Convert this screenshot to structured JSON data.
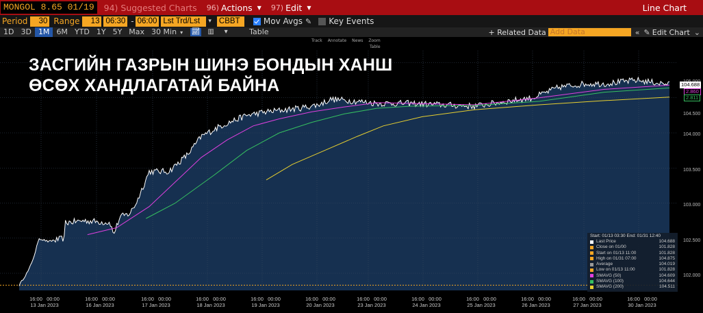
{
  "toolbar": {
    "security": "MONGOL 8.65 01/19",
    "suggested": "94) Suggested Charts",
    "actions_num": "96)",
    "actions_label": "Actions",
    "edit_num": "97)",
    "edit_label": "Edit",
    "chart_type": "Line Chart"
  },
  "params": {
    "period_label": "Period",
    "period_value": "30",
    "range_label": "Range",
    "range_value": "13",
    "time_from": "06:30",
    "time_to": "06:00",
    "series": "Lst Trd/Lst",
    "source": "CBBT",
    "mov_avgs": "Mov Avgs",
    "key_events": "Key Events"
  },
  "ranges": {
    "items": [
      "1D",
      "3D",
      "1M",
      "6M",
      "YTD",
      "1Y",
      "5Y",
      "Max"
    ],
    "active": "1M",
    "interval": "30 Min",
    "table": "Table",
    "related": "+ Related Data",
    "add_data_placeholder": "Add Data",
    "edit_chart": "Edit Chart"
  },
  "headline": {
    "line1": "ЗАСГИЙН ГАЗРЫН ШИНЭ БОНДЫН ХАНШ",
    "line2": "ӨСӨХ ХАНДЛАГАТАЙ БАЙНА"
  },
  "mini_tools": [
    "Track",
    "Annotate",
    "News",
    "Zoom"
  ],
  "mini_tool2": "Table",
  "y_axis": {
    "ticks": [
      "105.000",
      "104.500",
      "104.000",
      "103.500",
      "103.000",
      "102.500",
      "102.000"
    ],
    "tags": [
      {
        "text": "104.688",
        "color": "#ffffff"
      },
      {
        "text": "2.860",
        "color": "#e040e0"
      },
      {
        "text": "2.811",
        "color": "#36c060"
      }
    ]
  },
  "x_axis": [
    {
      "t": "16:00   00:00",
      "d": "13 Jan 2023"
    },
    {
      "t": "16:00   00:00",
      "d": "16 Jan 2023"
    },
    {
      "t": "16:00   00:00",
      "d": "17 Jan 2023"
    },
    {
      "t": "16:00   00:00",
      "d": "18 Jan 2023"
    },
    {
      "t": "16:00   00:00",
      "d": "19 Jan 2023"
    },
    {
      "t": "16:00   00:00",
      "d": "20 Jan 2023"
    },
    {
      "t": "16:00   00:00",
      "d": "23 Jan 2023"
    },
    {
      "t": "16:00   00:00",
      "d": "24 Jan 2023"
    },
    {
      "t": "16:00   00:00",
      "d": "25 Jan 2023"
    },
    {
      "t": "16:00   00:00",
      "d": "26 Jan 2023"
    },
    {
      "t": "16:00   00:00",
      "d": "27 Jan 2023"
    },
    {
      "t": "16:00   00:00",
      "d": "30 Jan 2023"
    }
  ],
  "legend": {
    "header": "Start: 01/13 03:30 End: 01/31 12:40",
    "rows": [
      {
        "name": "Last Price",
        "value": "104.688",
        "color": "#ffffff"
      },
      {
        "name": "Close on 01/00",
        "value": "101.828",
        "color": "#f5a623"
      },
      {
        "name": "Start on 01/13 11:00",
        "value": "101.828",
        "color": "#f5a623"
      },
      {
        "name": "High on 01/31 07:00",
        "value": "104.875",
        "color": "#f5a623"
      },
      {
        "name": "Average",
        "value": "104.019",
        "color": "#999999"
      },
      {
        "name": "Low on 01/13 11:00",
        "value": "101.828",
        "color": "#f5a623"
      },
      {
        "name": "SMAVG (50)",
        "value": "104.609",
        "color": "#e040e0"
      },
      {
        "name": "SMAVG (100)",
        "value": "104.644",
        "color": "#36c060"
      },
      {
        "name": "SMAVG (200)",
        "value": "104.511",
        "color": "#e8d030"
      }
    ]
  },
  "colors": {
    "price": "#ffffff",
    "area": "#163050",
    "sma50": "#e040e0",
    "sma100": "#36c060",
    "sma200": "#e8d030",
    "accent": "#f5a623",
    "header": "#a80d12"
  }
}
